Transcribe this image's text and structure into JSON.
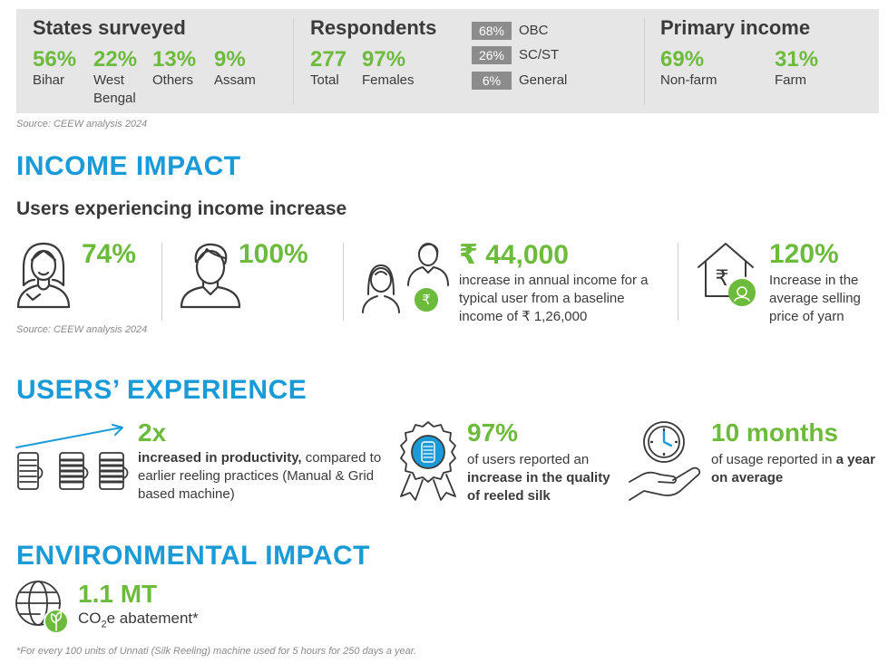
{
  "demographics": {
    "states": {
      "title": "States surveyed",
      "items": [
        {
          "value": "56%",
          "label": "Bihar"
        },
        {
          "value": "22%",
          "label": "West Bengal"
        },
        {
          "value": "13%",
          "label": "Others"
        },
        {
          "value": "9%",
          "label": "Assam"
        }
      ]
    },
    "respondents": {
      "title": "Respondents",
      "items": [
        {
          "value": "277",
          "label": "Total"
        },
        {
          "value": "97%",
          "label": "Females"
        }
      ]
    },
    "caste": [
      {
        "value": "68%",
        "label": "OBC"
      },
      {
        "value": "26%",
        "label": "SC/ST"
      },
      {
        "value": "6%",
        "label": "General"
      }
    ],
    "income": {
      "title": "Primary income",
      "items": [
        {
          "value": "69%",
          "label": "Non-farm"
        },
        {
          "value": "31%",
          "label": "Farm"
        }
      ]
    },
    "source": "Source: CEEW analysis 2024"
  },
  "income_impact": {
    "heading": "INCOME IMPACT",
    "subheading": "Users experiencing income increase",
    "women_pct": "74%",
    "men_pct": "100%",
    "annual_income": {
      "value": "₹ 44,000",
      "text": "increase in annual income for a typical user from a baseline income of ₹ 1,26,000"
    },
    "yarn_price": {
      "value": "120%",
      "text": "Increase in the average selling price of yarn"
    },
    "source": "Source: CEEW analysis 2024"
  },
  "users_experience": {
    "heading": "USERS’ EXPERIENCE",
    "productivity": {
      "value": "2x",
      "bold": "increased in productivity,",
      "text": " compared to earlier reeling practices (Manual & Grid based machine)"
    },
    "quality": {
      "value": "97%",
      "text": "of users reported an ",
      "bold": "increase in the quality of reeled silk"
    },
    "usage": {
      "value": "10 months",
      "text": "of usage reported in ",
      "bold": "a year on average"
    }
  },
  "environmental_impact": {
    "heading": "ENVIRONMENTAL IMPACT",
    "value": "1.1 MT",
    "label_pre": "CO",
    "label_sub": "2",
    "label_post": "e abatement*"
  },
  "footnote": "*For every 100 units of Unnati (Silk Reeling) machine used for 5 hours for 250 days a year.",
  "colors": {
    "green": "#6cbb3c",
    "blue": "#1a9ad6",
    "band": "#e6e6e6",
    "caste_box": "#8c8c8c"
  }
}
